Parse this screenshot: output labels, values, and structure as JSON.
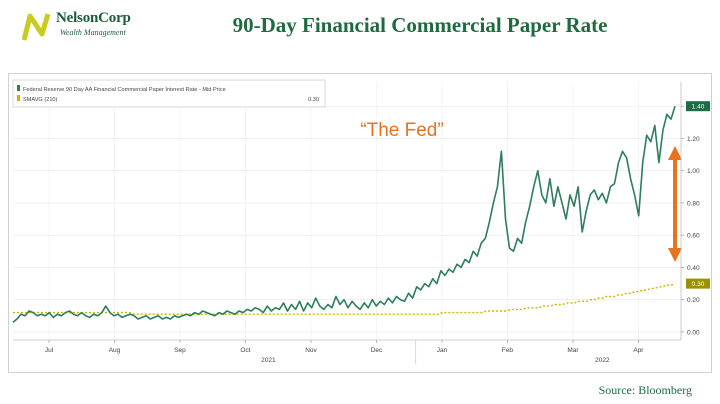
{
  "header": {
    "logo_name": "NelsonCorp",
    "logo_sub": "Wealth Management",
    "title": "90-Day Financial Commercial Paper Rate"
  },
  "annotation": {
    "fed_label": "“The Fed”"
  },
  "footer": {
    "source": "Source: Bloomberg"
  },
  "chart_data": {
    "type": "line",
    "title": "90-Day Financial Commercial Paper Rate",
    "ylim": [
      -0.05,
      1.55
    ],
    "yticks": [
      "0.00",
      "0.20",
      "0.40",
      "0.60",
      "0.80",
      "1.00",
      "1.20",
      "1.40"
    ],
    "month_labels": [
      "Jul",
      "Aug",
      "Sep",
      "Oct",
      "Nov",
      "Dec",
      "Jan",
      "Feb",
      "Mar",
      "Apr"
    ],
    "year_labels": [
      "2021",
      "2022"
    ],
    "grid": true,
    "legend_position": "top-left",
    "colors": {
      "rate": "#2e7d5b",
      "smavg": "#c8b400",
      "arrow": "#e8731f",
      "badge_rate": "#1f6b43",
      "badge_smavg": "#9a9000"
    },
    "last_values": {
      "rate": "1.40",
      "smavg": "0.30"
    },
    "series": [
      {
        "name": "Federal Reserve 90 Day AA Financial Commercial Paper Interest Rate - Mid Price",
        "legend_value": "",
        "values": [
          0.06,
          0.08,
          0.11,
          0.1,
          0.13,
          0.12,
          0.1,
          0.11,
          0.1,
          0.12,
          0.09,
          0.11,
          0.1,
          0.12,
          0.13,
          0.11,
          0.1,
          0.12,
          0.1,
          0.09,
          0.11,
          0.1,
          0.12,
          0.16,
          0.12,
          0.1,
          0.11,
          0.09,
          0.1,
          0.11,
          0.1,
          0.08,
          0.09,
          0.1,
          0.08,
          0.09,
          0.1,
          0.08,
          0.09,
          0.08,
          0.1,
          0.09,
          0.1,
          0.11,
          0.1,
          0.12,
          0.11,
          0.13,
          0.12,
          0.11,
          0.1,
          0.12,
          0.11,
          0.13,
          0.12,
          0.11,
          0.13,
          0.12,
          0.14,
          0.13,
          0.15,
          0.14,
          0.12,
          0.16,
          0.13,
          0.15,
          0.14,
          0.18,
          0.13,
          0.17,
          0.14,
          0.19,
          0.13,
          0.18,
          0.15,
          0.21,
          0.16,
          0.14,
          0.17,
          0.15,
          0.22,
          0.17,
          0.2,
          0.15,
          0.19,
          0.16,
          0.14,
          0.18,
          0.15,
          0.2,
          0.16,
          0.19,
          0.17,
          0.21,
          0.18,
          0.22,
          0.2,
          0.19,
          0.24,
          0.21,
          0.28,
          0.26,
          0.3,
          0.28,
          0.33,
          0.3,
          0.38,
          0.35,
          0.39,
          0.37,
          0.42,
          0.4,
          0.45,
          0.43,
          0.5,
          0.47,
          0.55,
          0.58,
          0.68,
          0.8,
          0.9,
          1.12,
          0.7,
          0.52,
          0.5,
          0.58,
          0.55,
          0.68,
          0.78,
          0.9,
          1.0,
          0.85,
          0.8,
          0.95,
          0.78,
          0.9,
          0.8,
          0.7,
          0.85,
          0.78,
          0.9,
          0.62,
          0.75,
          0.85,
          0.88,
          0.82,
          0.86,
          0.8,
          0.9,
          0.92,
          1.05,
          1.12,
          1.08,
          0.95,
          0.85,
          0.72,
          1.05,
          1.22,
          1.18,
          1.28,
          1.05,
          1.25,
          1.35,
          1.32,
          1.4
        ]
      },
      {
        "name": "SMAVG (210)",
        "legend_value": "0.30",
        "values": [
          0.12,
          0.12,
          0.12,
          0.12,
          0.12,
          0.12,
          0.12,
          0.12,
          0.12,
          0.12,
          0.12,
          0.12,
          0.12,
          0.12,
          0.12,
          0.12,
          0.12,
          0.12,
          0.12,
          0.12,
          0.12,
          0.12,
          0.12,
          0.12,
          0.12,
          0.12,
          0.12,
          0.12,
          0.12,
          0.12,
          0.11,
          0.11,
          0.11,
          0.11,
          0.11,
          0.11,
          0.11,
          0.11,
          0.11,
          0.11,
          0.11,
          0.11,
          0.11,
          0.11,
          0.11,
          0.11,
          0.11,
          0.11,
          0.11,
          0.11,
          0.11,
          0.11,
          0.11,
          0.11,
          0.11,
          0.11,
          0.11,
          0.11,
          0.11,
          0.11,
          0.11,
          0.11,
          0.11,
          0.11,
          0.11,
          0.11,
          0.11,
          0.11,
          0.11,
          0.11,
          0.11,
          0.11,
          0.11,
          0.11,
          0.11,
          0.11,
          0.11,
          0.11,
          0.11,
          0.11,
          0.11,
          0.11,
          0.11,
          0.11,
          0.11,
          0.11,
          0.11,
          0.11,
          0.11,
          0.11,
          0.11,
          0.11,
          0.11,
          0.11,
          0.11,
          0.11,
          0.11,
          0.11,
          0.11,
          0.11,
          0.11,
          0.11,
          0.11,
          0.11,
          0.11,
          0.11,
          0.11,
          0.12,
          0.12,
          0.12,
          0.12,
          0.12,
          0.12,
          0.12,
          0.12,
          0.12,
          0.12,
          0.12,
          0.13,
          0.13,
          0.13,
          0.13,
          0.13,
          0.13,
          0.14,
          0.14,
          0.14,
          0.14,
          0.15,
          0.15,
          0.15,
          0.15,
          0.16,
          0.16,
          0.16,
          0.17,
          0.17,
          0.17,
          0.18,
          0.18,
          0.18,
          0.19,
          0.19,
          0.19,
          0.2,
          0.2,
          0.21,
          0.21,
          0.22,
          0.22,
          0.22,
          0.23,
          0.23,
          0.24,
          0.24,
          0.25,
          0.25,
          0.26,
          0.26,
          0.27,
          0.27,
          0.28,
          0.28,
          0.29,
          0.29,
          0.3
        ]
      }
    ]
  }
}
